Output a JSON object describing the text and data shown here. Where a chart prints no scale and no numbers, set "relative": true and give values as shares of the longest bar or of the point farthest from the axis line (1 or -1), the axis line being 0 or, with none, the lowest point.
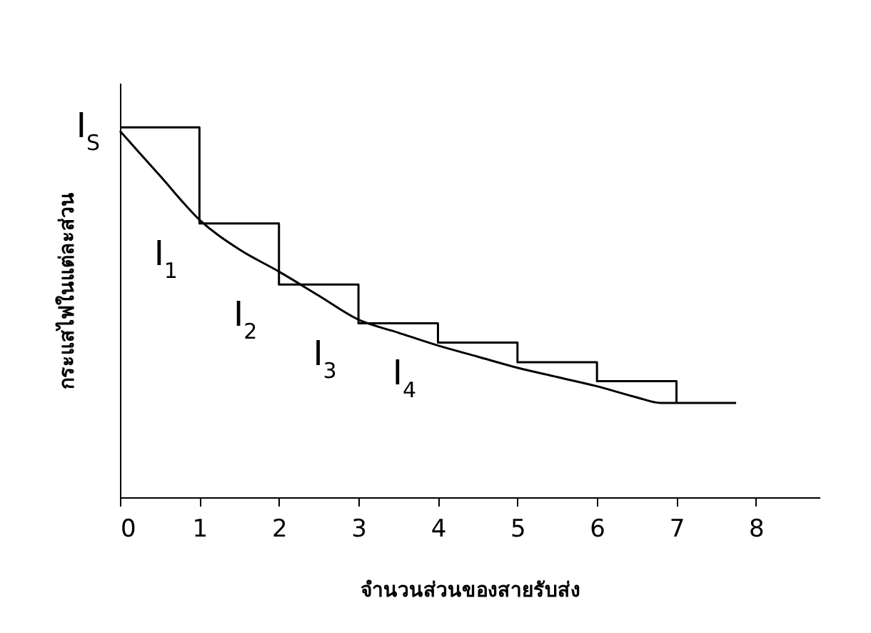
{
  "chart_data": {
    "type": "line",
    "relative": true,
    "xlabel": "จำนวนส่วนของสายรับส่ง",
    "ylabel": "กระแสไฟในแต่ละส่วน",
    "xlim": [
      0,
      8.8
    ],
    "xticks": [
      0,
      1,
      2,
      3,
      4,
      5,
      6,
      7,
      8
    ],
    "grid": false,
    "marker": "none",
    "line_style": "solid",
    "series": [
      {
        "type": "line",
        "color": "#000000",
        "x": [
          0,
          0.5,
          1,
          1.5,
          2,
          2.5,
          3,
          3.5,
          4,
          4.5,
          5,
          5.5,
          6,
          6.5,
          6.8,
          7.75
        ],
        "values": [
          0.99,
          0.87,
          0.75,
          0.67,
          0.61,
          0.545,
          0.48,
          0.445,
          0.41,
          0.38,
          0.35,
          0.325,
          0.3,
          0.27,
          0.255,
          0.255
        ]
      },
      {
        "type": "step",
        "color": "#000000",
        "x": [
          0,
          1,
          2,
          3,
          4,
          5,
          6,
          7
        ],
        "values": [
          1,
          0.74,
          0.575,
          0.47,
          0.418,
          0.365,
          0.314,
          0.255
        ]
      }
    ],
    "annotations": [
      {
        "text": "I$_{S}$",
        "x": 0,
        "y": 1
      },
      "I$_{1}$",
      "I$_{2}$",
      "I$_{3}$",
      "I$_{4}$"
    ]
  }
}
